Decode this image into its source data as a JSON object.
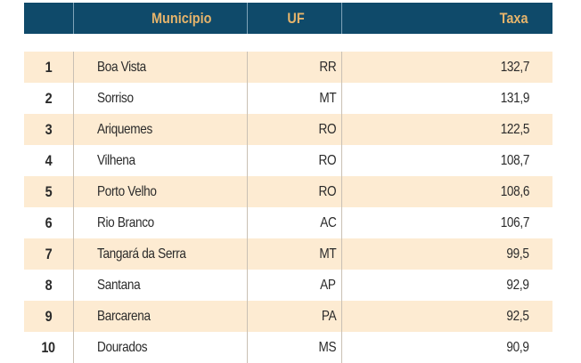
{
  "table": {
    "headers": [
      "",
      "Município",
      "UF",
      "Taxa"
    ],
    "rows": [
      {
        "rank": "1",
        "municipio": "Boa Vista",
        "uf": "RR",
        "taxa": "132,7"
      },
      {
        "rank": "2",
        "municipio": "Sorriso",
        "uf": "MT",
        "taxa": "131,9"
      },
      {
        "rank": "3",
        "municipio": "Ariquemes",
        "uf": "RO",
        "taxa": "122,5"
      },
      {
        "rank": "4",
        "municipio": "Vilhena",
        "uf": "RO",
        "taxa": "108,7"
      },
      {
        "rank": "5",
        "municipio": "Porto Velho",
        "uf": "RO",
        "taxa": "108,6"
      },
      {
        "rank": "6",
        "municipio": "Rio Branco",
        "uf": "AC",
        "taxa": "106,7"
      },
      {
        "rank": "7",
        "municipio": "Tangará da Serra",
        "uf": "MT",
        "taxa": "99,5"
      },
      {
        "rank": "8",
        "municipio": "Santana",
        "uf": "AP",
        "taxa": "92,9"
      },
      {
        "rank": "9",
        "municipio": "Barcarena",
        "uf": "PA",
        "taxa": "92,5"
      },
      {
        "rank": "10",
        "municipio": "Dourados",
        "uf": "MS",
        "taxa": "90,9"
      }
    ]
  },
  "colors": {
    "header_bg": "#0f4a6a",
    "header_text": "#e6b46b",
    "band": "#fdebd2"
  }
}
